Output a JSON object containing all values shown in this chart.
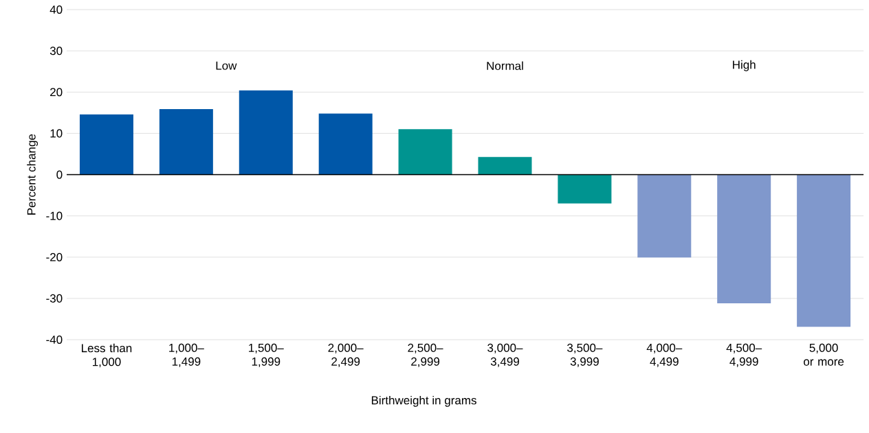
{
  "chart_data": {
    "type": "bar",
    "categories": [
      "Less than 1,000",
      "1,000– 1,499",
      "1,500– 1,999",
      "2,000– 2,499",
      "2,500– 2,999",
      "3,000– 3,499",
      "3,500– 3,999",
      "4,000– 4,499",
      "4,500– 4,999",
      "5,000 or more"
    ],
    "values": [
      14.6,
      15.9,
      20.4,
      14.8,
      11.0,
      4.3,
      -7.0,
      -20.1,
      -31.2,
      -36.9
    ],
    "colors": [
      "#0057a8",
      "#0057a8",
      "#0057a8",
      "#0057a8",
      "#009490",
      "#009490",
      "#009490",
      "#8098cc",
      "#8098cc",
      "#8098cc"
    ],
    "ylim": [
      -40,
      40
    ],
    "yticks": [
      -40,
      -30,
      -20,
      -10,
      0,
      10,
      20,
      30,
      40
    ],
    "ylabel": "Percent change",
    "xlabel": "Birthweight in grams",
    "annotations": [
      "Low",
      "Normal",
      "High"
    ],
    "grid": "y"
  }
}
